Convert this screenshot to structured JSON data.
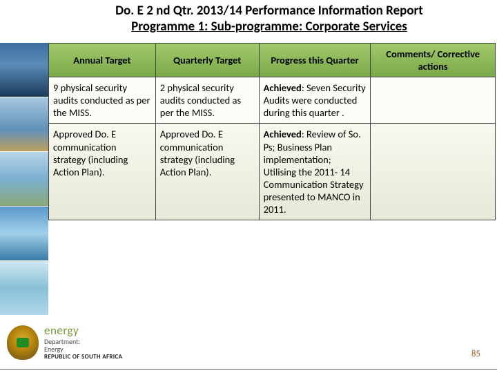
{
  "title": {
    "line1": "Do. E 2 nd  Qtr. 2013/14 Performance Information Report",
    "line2": "Programme 1: Sub-programme: Corporate Services"
  },
  "columns": [
    "Annual Target",
    "Quarterly Target",
    "Progress this Quarter",
    "Comments/ Corrective actions"
  ],
  "rows": [
    {
      "annual": "9 physical security audits conducted as per the MISS.",
      "quarterly": "2 physical security audits conducted as per the MISS.",
      "progress_label": "Achieved",
      "progress_body": ": Seven Security Audits were conducted during this quarter .",
      "comments": ""
    },
    {
      "annual": "Approved Do. E communication strategy (including Action Plan).",
      "quarterly": "Approved Do. E communication strategy (including Action Plan).",
      "progress_label": "Achieved",
      "progress_body": ": Review of So. Ps; Business Plan implementation; Utilising the 2011- 14 Communication Strategy presented to MANCO in 2011.",
      "comments": ""
    }
  ],
  "logo": {
    "energy": "energy",
    "dept": "Department:",
    "dept2": "Energy",
    "rsa": "REPUBLIC OF SOUTH AFRICA"
  },
  "page_number": "85",
  "styling": {
    "header_bg_top": "#a0c86a",
    "header_bg_bottom": "#7aa848",
    "border_color": "#444444",
    "row_bg": "#fdfdf8",
    "row2_bg_top": "#f8f8f0",
    "row2_bg_bottom": "#e8e8d8",
    "title_fontsize": 19,
    "body_fontsize": 14.5,
    "page_num_color": "#996633",
    "font_family": "Calibri"
  }
}
